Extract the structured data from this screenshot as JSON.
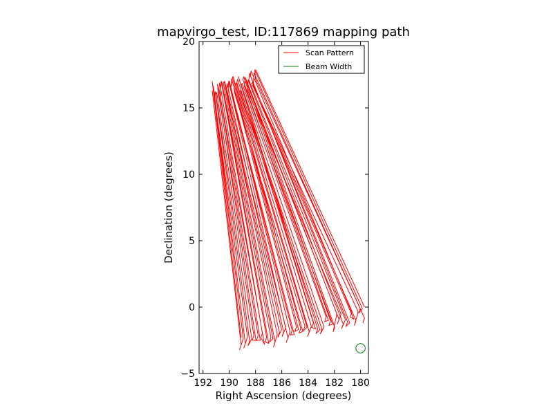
{
  "chart_data": {
    "type": "line",
    "title": "mapvirgo_test, ID:117869 mapping path",
    "xlabel": "Right Ascension (degrees)",
    "ylabel": "Declination (degrees)",
    "xlim": [
      192.3,
      179.4
    ],
    "ylim": [
      -5,
      20
    ],
    "x_inverted": true,
    "xticks": [
      192,
      190,
      188,
      186,
      184,
      182,
      180
    ],
    "yticks": [
      -5,
      0,
      5,
      10,
      15,
      20
    ],
    "ytick_labels": [
      "−5",
      "0",
      "5",
      "10",
      "15",
      "20"
    ],
    "grid": false,
    "legend_position": "top-right",
    "series": [
      {
        "name": "Scan Pattern",
        "color": "#ff0000",
        "description": "back-and-forth scan legs running from the upper-left strip to the lower-right strip",
        "top_edge": {
          "ra": [
            191.3,
            188.0
          ],
          "dec": [
            17.0,
            17.9
          ]
        },
        "bottom_edge": {
          "ra": [
            189.1,
            179.7
          ],
          "dec": [
            -2.3,
            0.0
          ]
        },
        "n_legs": 30
      },
      {
        "name": "Beam Width",
        "color": "#008000",
        "center": {
          "ra": 180.0,
          "dec": -3.1
        },
        "radius_dec": 0.35
      }
    ]
  }
}
